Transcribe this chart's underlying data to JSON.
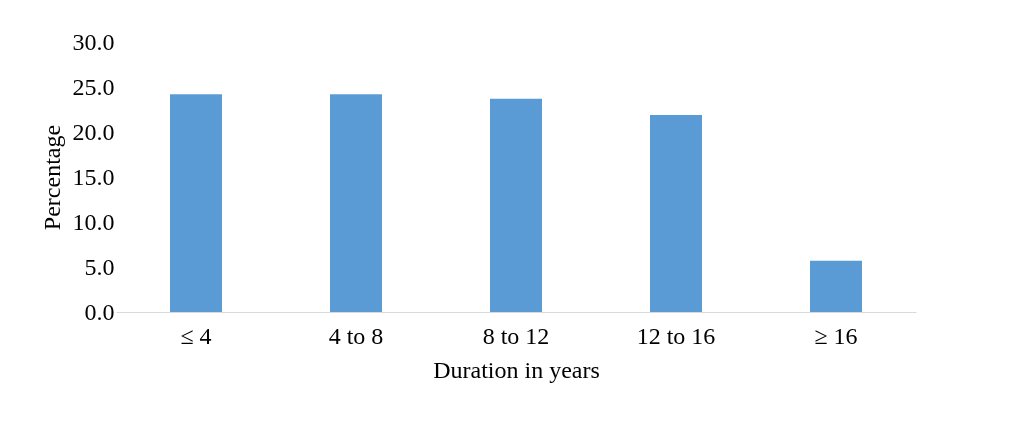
{
  "chart_data": {
    "type": "bar",
    "xlabel": "Duration in years",
    "ylabel": "Percentage",
    "categories": [
      "≤ 4",
      "4 to 8",
      "8 to 12",
      "12 to 16",
      "≥ 16"
    ],
    "values": [
      24.2,
      24.2,
      23.7,
      21.9,
      5.7
    ],
    "color": "#5b9bd5",
    "ylim": [
      0,
      30
    ],
    "yticks": [
      {
        "value": 0,
        "label": "0.0"
      },
      {
        "value": 5,
        "label": "5.0"
      },
      {
        "value": 10,
        "label": "10.0"
      },
      {
        "value": 15,
        "label": "15.0"
      },
      {
        "value": 20,
        "label": "20.0"
      },
      {
        "value": 25,
        "label": "25.0"
      },
      {
        "value": 30,
        "label": "30.0"
      }
    ],
    "grid": false
  }
}
